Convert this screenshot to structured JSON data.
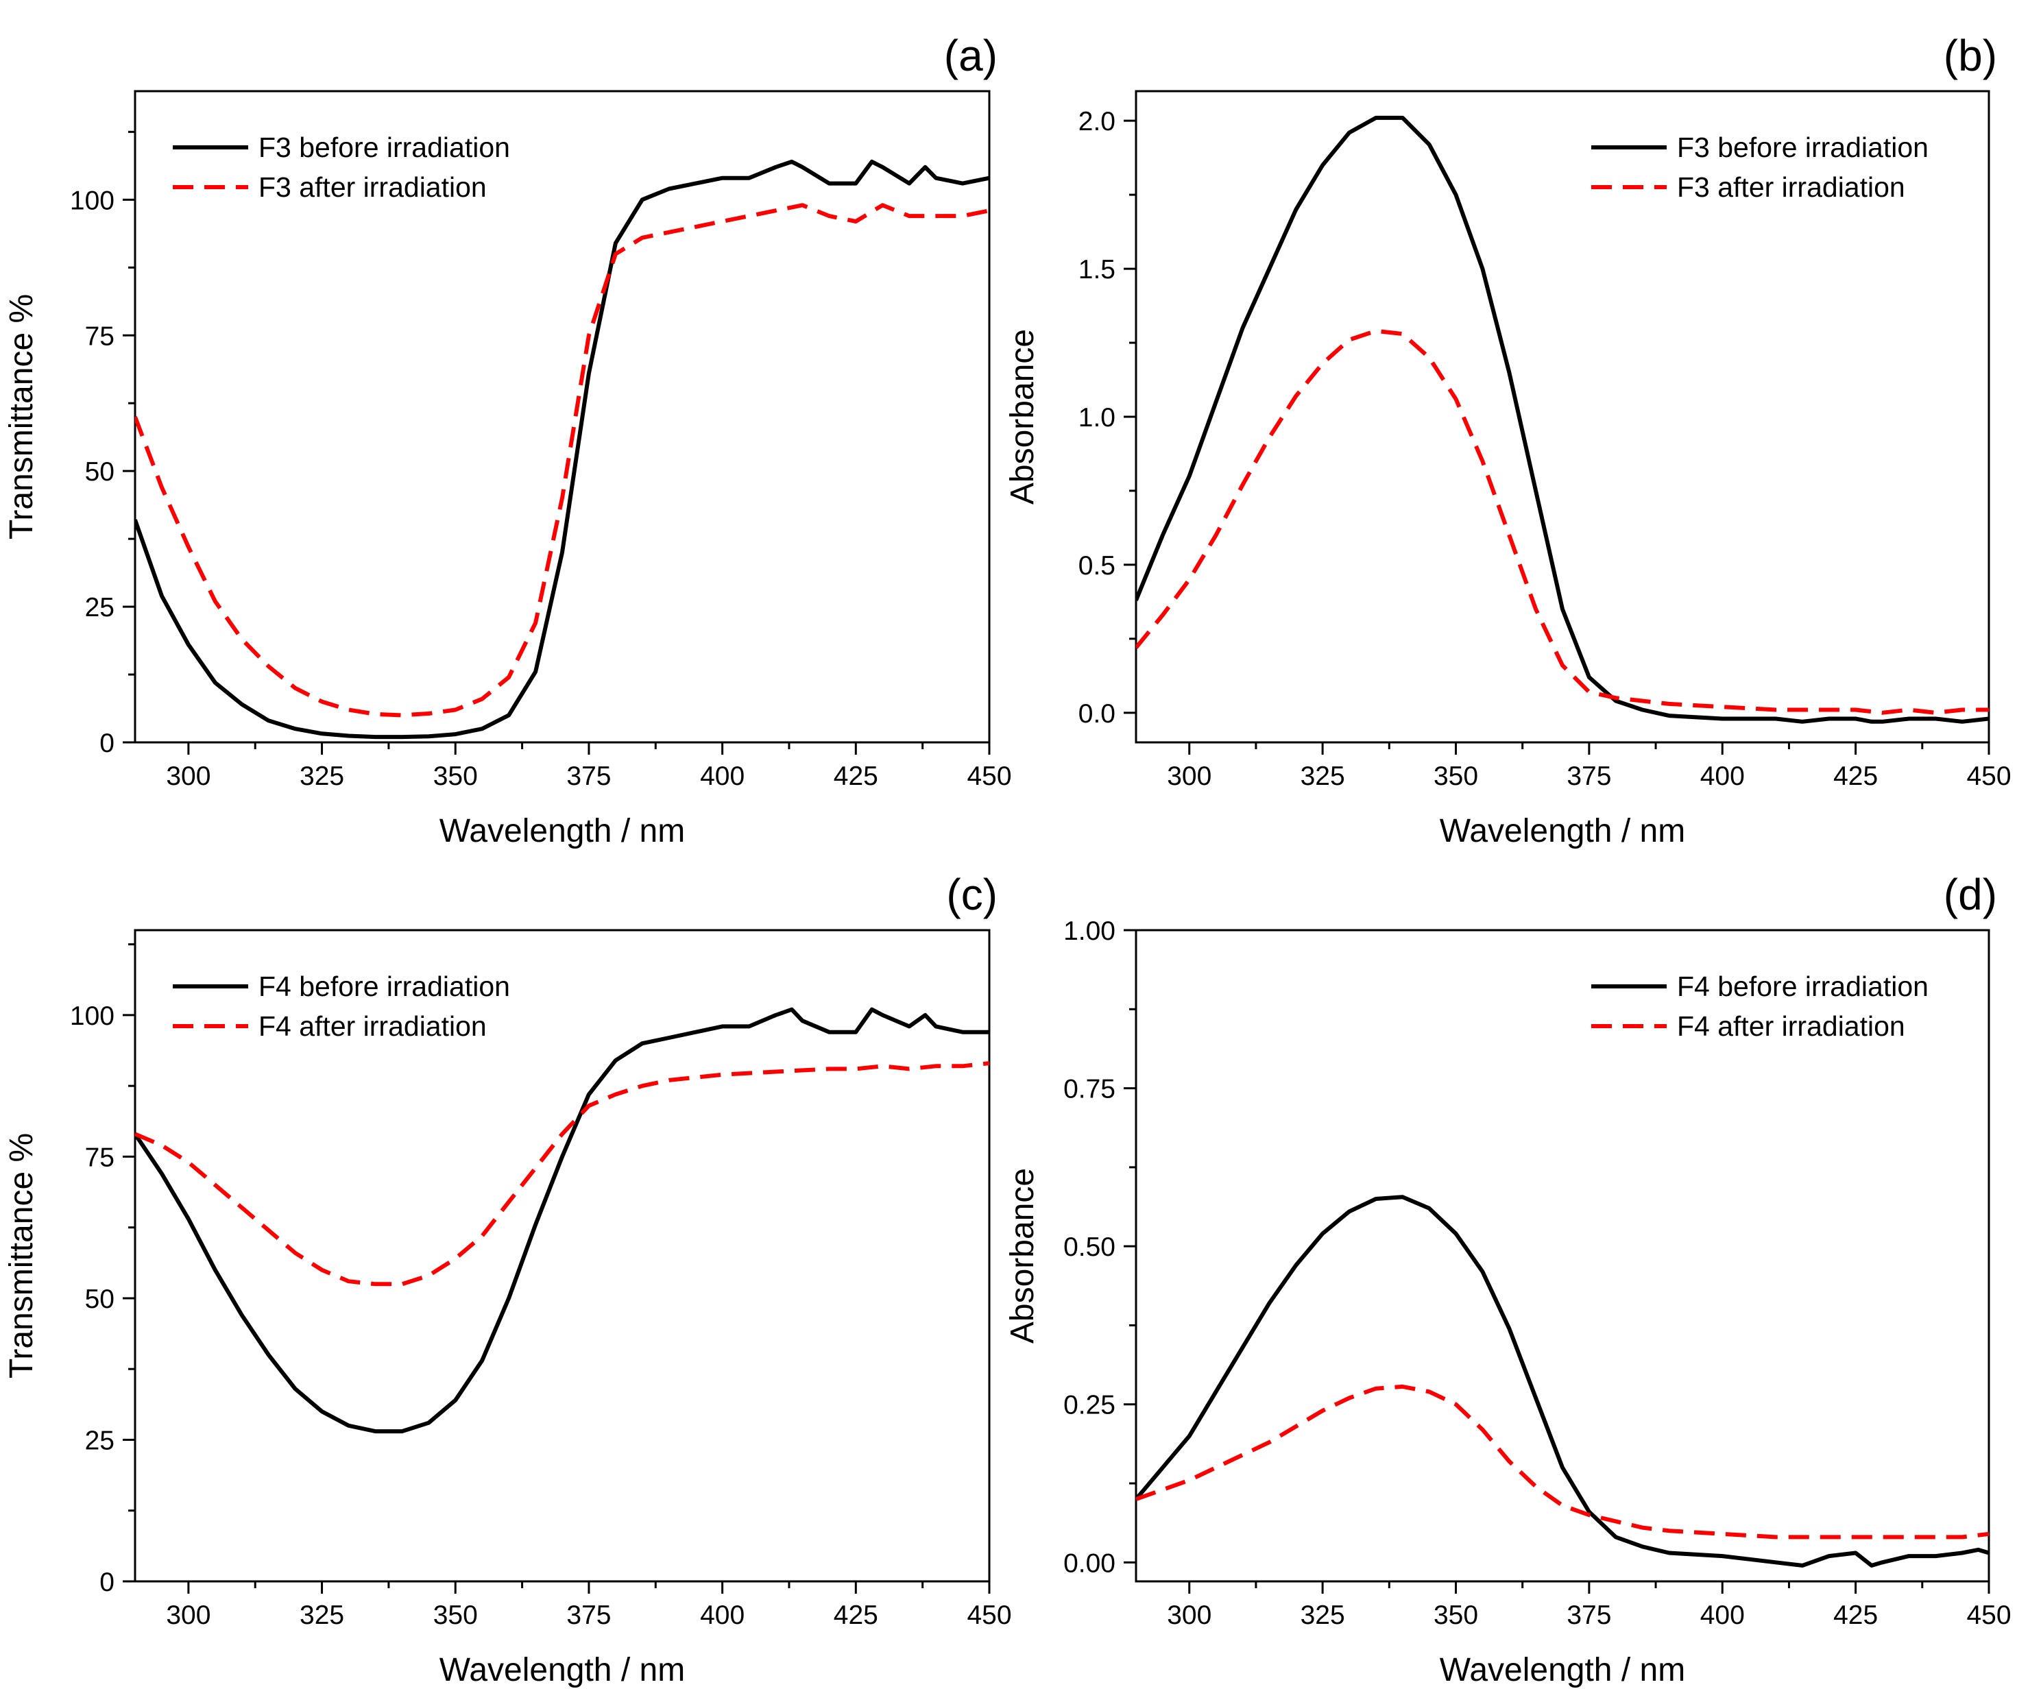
{
  "chart_data": [
    {
      "panel": "(a)",
      "type": "line",
      "xlabel": "Wavelength / nm",
      "ylabel": "Transmittance %",
      "xlim": [
        290,
        450
      ],
      "ylim": [
        0,
        120
      ],
      "xticks": [
        300,
        325,
        350,
        375,
        400,
        425,
        450
      ],
      "yticks": [
        0,
        25,
        50,
        75,
        100
      ],
      "legend_position": "top-left",
      "series": [
        {
          "name": "F3 before irradiation",
          "style": "solid",
          "color": "#000000",
          "x": [
            290,
            295,
            300,
            305,
            310,
            315,
            320,
            325,
            330,
            335,
            340,
            345,
            350,
            355,
            360,
            365,
            370,
            375,
            380,
            385,
            390,
            395,
            400,
            405,
            410,
            413,
            415,
            420,
            425,
            428,
            430,
            435,
            438,
            440,
            445,
            450
          ],
          "y": [
            41,
            27,
            18,
            11,
            7,
            4,
            2.5,
            1.6,
            1.2,
            1,
            1,
            1.1,
            1.5,
            2.5,
            5,
            13,
            35,
            68,
            92,
            100,
            102,
            103,
            104,
            104,
            106,
            107,
            106,
            103,
            103,
            107,
            106,
            103,
            106,
            104,
            103,
            104
          ]
        },
        {
          "name": "F3 after irradiation",
          "style": "dashed",
          "color": "#ff0000",
          "x": [
            290,
            295,
            300,
            305,
            310,
            315,
            320,
            325,
            330,
            335,
            340,
            345,
            350,
            355,
            360,
            365,
            370,
            375,
            380,
            385,
            390,
            395,
            400,
            405,
            410,
            415,
            420,
            425,
            430,
            435,
            440,
            445,
            450
          ],
          "y": [
            60,
            47,
            36,
            26,
            19,
            14,
            10,
            7.5,
            6,
            5.2,
            5,
            5.3,
            6,
            8,
            12,
            22,
            45,
            75,
            90,
            93,
            94,
            95,
            96,
            97,
            98,
            99,
            97,
            96,
            99,
            97,
            97,
            97,
            98
          ]
        }
      ]
    },
    {
      "panel": "(b)",
      "type": "line",
      "xlabel": "Wavelength / nm",
      "ylabel": "Absorbance",
      "xlim": [
        290,
        450
      ],
      "ylim": [
        -0.1,
        2.1
      ],
      "xticks": [
        300,
        325,
        350,
        375,
        400,
        425,
        450
      ],
      "yticks": [
        0.0,
        0.5,
        1.0,
        1.5,
        2.0
      ],
      "ytick_labels": [
        "0.0",
        "0.5",
        "1.0",
        "1.5",
        "2.0"
      ],
      "legend_position": "top-right",
      "series": [
        {
          "name": "F3 before irradiation",
          "style": "solid",
          "color": "#000000",
          "x": [
            290,
            295,
            300,
            305,
            310,
            315,
            320,
            325,
            330,
            335,
            340,
            345,
            350,
            355,
            360,
            365,
            370,
            375,
            380,
            385,
            390,
            400,
            410,
            415,
            420,
            425,
            428,
            430,
            435,
            440,
            445,
            450
          ],
          "y": [
            0.38,
            0.6,
            0.8,
            1.05,
            1.3,
            1.5,
            1.7,
            1.85,
            1.96,
            2.01,
            2.01,
            1.92,
            1.75,
            1.5,
            1.15,
            0.75,
            0.35,
            0.12,
            0.04,
            0.01,
            -0.01,
            -0.02,
            -0.02,
            -0.03,
            -0.02,
            -0.02,
            -0.03,
            -0.03,
            -0.02,
            -0.02,
            -0.03,
            -0.02
          ]
        },
        {
          "name": "F3 after irradiation",
          "style": "dashed",
          "color": "#ff0000",
          "x": [
            290,
            295,
            300,
            305,
            310,
            315,
            320,
            325,
            330,
            335,
            340,
            345,
            350,
            355,
            360,
            365,
            370,
            375,
            380,
            385,
            390,
            400,
            410,
            420,
            425,
            430,
            435,
            440,
            445,
            450
          ],
          "y": [
            0.22,
            0.33,
            0.45,
            0.6,
            0.77,
            0.93,
            1.07,
            1.18,
            1.26,
            1.29,
            1.28,
            1.2,
            1.06,
            0.85,
            0.6,
            0.35,
            0.16,
            0.07,
            0.05,
            0.04,
            0.03,
            0.02,
            0.01,
            0.01,
            0.01,
            0.0,
            0.01,
            0.0,
            0.01,
            0.01
          ]
        }
      ]
    },
    {
      "panel": "(c)",
      "type": "line",
      "xlabel": "Wavelength / nm",
      "ylabel": "Transmittance %",
      "xlim": [
        290,
        450
      ],
      "ylim": [
        0,
        115
      ],
      "xticks": [
        300,
        325,
        350,
        375,
        400,
        425,
        450
      ],
      "yticks": [
        0,
        25,
        50,
        75,
        100
      ],
      "legend_position": "top-left",
      "series": [
        {
          "name": "F4 before irradiation",
          "style": "solid",
          "color": "#000000",
          "x": [
            290,
            295,
            300,
            305,
            310,
            315,
            320,
            325,
            330,
            335,
            340,
            345,
            350,
            355,
            360,
            365,
            370,
            375,
            380,
            385,
            390,
            395,
            400,
            405,
            410,
            413,
            415,
            420,
            425,
            428,
            430,
            435,
            438,
            440,
            445,
            450
          ],
          "y": [
            79,
            72,
            64,
            55,
            47,
            40,
            34,
            30,
            27.5,
            26.5,
            26.5,
            28,
            32,
            39,
            50,
            63,
            75,
            86,
            92,
            95,
            96,
            97,
            98,
            98,
            100,
            101,
            99,
            97,
            97,
            101,
            100,
            98,
            100,
            98,
            97,
            97
          ]
        },
        {
          "name": "F4 after irradiation",
          "style": "dashed",
          "color": "#ff0000",
          "x": [
            290,
            295,
            300,
            305,
            310,
            315,
            320,
            325,
            330,
            335,
            340,
            345,
            350,
            355,
            360,
            365,
            370,
            375,
            380,
            385,
            390,
            395,
            400,
            410,
            420,
            425,
            430,
            435,
            440,
            445,
            450
          ],
          "y": [
            79,
            77,
            74,
            70,
            66,
            62,
            58,
            55,
            53,
            52.5,
            52.5,
            54,
            57,
            61,
            67,
            73,
            79,
            84,
            86,
            87.5,
            88.5,
            89,
            89.5,
            90,
            90.5,
            90.5,
            91,
            90.5,
            91,
            91,
            91.5
          ]
        }
      ]
    },
    {
      "panel": "(d)",
      "type": "line",
      "xlabel": "Wavelength / nm",
      "ylabel": "Absorbance",
      "xlim": [
        290,
        450
      ],
      "ylim": [
        -0.03,
        1.0
      ],
      "xticks": [
        300,
        325,
        350,
        375,
        400,
        425,
        450
      ],
      "yticks": [
        0.0,
        0.25,
        0.5,
        0.75,
        1.0
      ],
      "ytick_labels": [
        "0.00",
        "0.25",
        "0.50",
        "0.75",
        "1.00"
      ],
      "legend_position": "top-right",
      "series": [
        {
          "name": "F4 before irradiation",
          "style": "solid",
          "color": "#000000",
          "x": [
            290,
            295,
            300,
            305,
            310,
            315,
            320,
            325,
            330,
            335,
            340,
            345,
            350,
            355,
            360,
            365,
            370,
            375,
            380,
            385,
            390,
            400,
            405,
            410,
            415,
            420,
            425,
            428,
            430,
            435,
            440,
            445,
            448,
            450
          ],
          "y": [
            0.1,
            0.15,
            0.2,
            0.27,
            0.34,
            0.41,
            0.47,
            0.52,
            0.555,
            0.575,
            0.578,
            0.56,
            0.52,
            0.46,
            0.37,
            0.26,
            0.15,
            0.08,
            0.04,
            0.025,
            0.015,
            0.01,
            0.005,
            0.0,
            -0.005,
            0.01,
            0.015,
            -0.005,
            0.0,
            0.01,
            0.01,
            0.015,
            0.02,
            0.015
          ]
        },
        {
          "name": "F4 after irradiation",
          "style": "dashed",
          "color": "#ff0000",
          "x": [
            290,
            295,
            300,
            305,
            310,
            315,
            320,
            325,
            330,
            335,
            340,
            345,
            350,
            355,
            360,
            365,
            370,
            375,
            380,
            385,
            390,
            400,
            410,
            420,
            425,
            430,
            435,
            440,
            445,
            450
          ],
          "y": [
            0.1,
            0.115,
            0.13,
            0.15,
            0.17,
            0.19,
            0.215,
            0.24,
            0.26,
            0.275,
            0.278,
            0.27,
            0.25,
            0.21,
            0.16,
            0.12,
            0.09,
            0.075,
            0.065,
            0.055,
            0.05,
            0.045,
            0.04,
            0.04,
            0.04,
            0.04,
            0.04,
            0.04,
            0.04,
            0.045
          ]
        }
      ]
    }
  ]
}
